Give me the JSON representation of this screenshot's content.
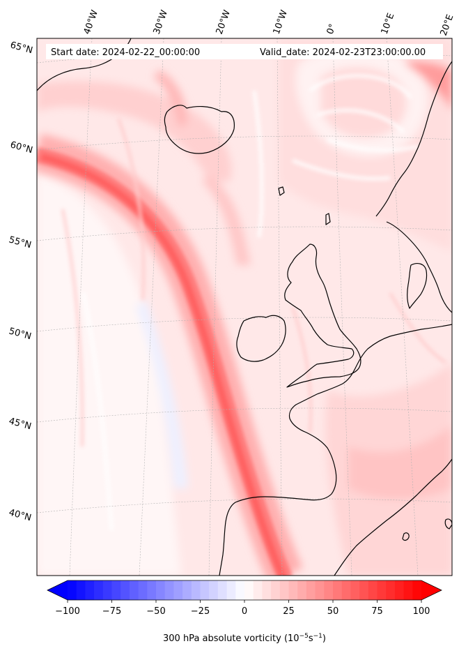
{
  "header": {
    "start_label": "Start date: 2024-02-22_00:00:00",
    "valid_label": "Valid_date: 2024-02-23T23:00:00.00"
  },
  "map": {
    "region": "North Atlantic and Western Europe",
    "field": "300 hPa absolute vorticity",
    "lon_labels": [
      "40°W",
      "30°W",
      "20°W",
      "10°W",
      "0°",
      "10°E",
      "20°E"
    ],
    "lat_labels": [
      "65°N",
      "60°N",
      "55°N",
      "50°N",
      "45°N",
      "40°N"
    ],
    "coastline_color": "#000000",
    "gridline_color": "#b0b0b0"
  },
  "colorbar": {
    "min": -100,
    "max": 100,
    "ticks": [
      "−100",
      "−75",
      "−50",
      "−25",
      "0",
      "25",
      "50",
      "75",
      "100"
    ],
    "extend": "both",
    "cmap": "bwr",
    "label_prefix": "300 hPa absolute vorticity (10",
    "label_exp1": "−5",
    "label_mid": "s",
    "label_exp2": "−1",
    "label_suffix": ")"
  }
}
